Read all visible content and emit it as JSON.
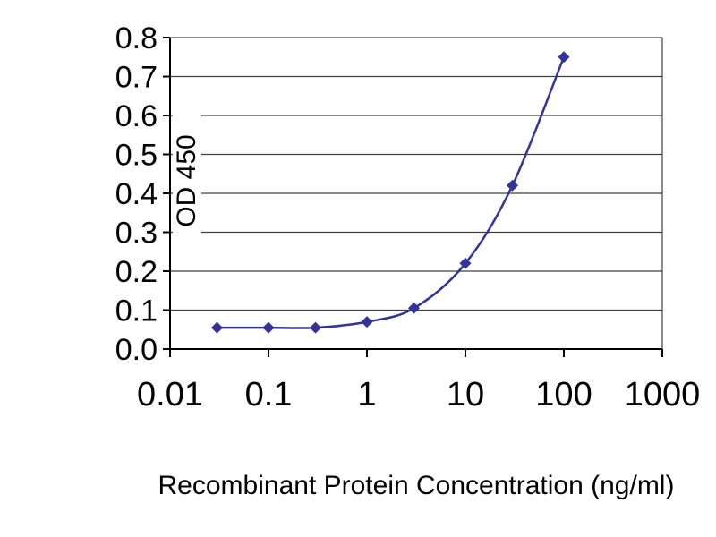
{
  "chart_data": {
    "type": "line",
    "title": "",
    "xlabel": "Recombinant Protein Concentration (ng/ml)",
    "ylabel": "OD 450",
    "x_scale": "log",
    "xlim": [
      0.01,
      1000
    ],
    "ylim": [
      0.0,
      0.8
    ],
    "x_ticks": [
      "0.01",
      "0.1",
      "1",
      "10",
      "100",
      "1000"
    ],
    "y_ticks": [
      "0.0",
      "0.1",
      "0.2",
      "0.3",
      "0.4",
      "0.5",
      "0.6",
      "0.7",
      "0.8"
    ],
    "x": [
      0.03,
      0.1,
      0.3,
      1,
      3,
      10,
      30,
      100
    ],
    "values": [
      0.055,
      0.055,
      0.055,
      0.07,
      0.105,
      0.22,
      0.42,
      0.75
    ],
    "grid": "horizontal",
    "legend": "none",
    "marker": "diamond",
    "line_color": "#333399",
    "grid_color": "#404040",
    "axis_color": "#000000",
    "background": "#ffffff"
  }
}
